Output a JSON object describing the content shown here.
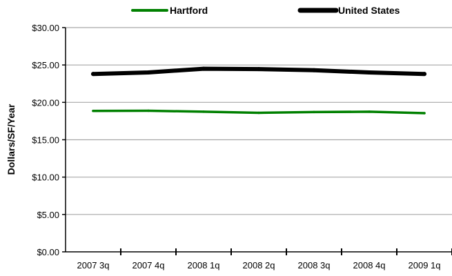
{
  "chart_data": {
    "type": "line",
    "categories": [
      "2007 3q",
      "2007 4q",
      "2008 1q",
      "2008 2q",
      "2008 3q",
      "2008 4q",
      "2009 1q"
    ],
    "series": [
      {
        "name": "Hartford",
        "color": "#008000",
        "values": [
          18.85,
          18.88,
          18.75,
          18.6,
          18.7,
          18.75,
          18.55
        ]
      },
      {
        "name": "United States",
        "color": "#000000",
        "values": [
          23.8,
          24.0,
          24.5,
          24.45,
          24.3,
          24.0,
          23.8
        ]
      }
    ],
    "ylabel": "Dollars/SF/Year",
    "ylim": [
      0,
      30
    ],
    "yticks": [
      0,
      5,
      10,
      15,
      20,
      25,
      30
    ],
    "ytick_labels": [
      "$0.00",
      "$5.00",
      "$10.00",
      "$15.00",
      "$20.00",
      "$25.00",
      "$30.00"
    ],
    "grid": true,
    "legend_position": "top"
  }
}
